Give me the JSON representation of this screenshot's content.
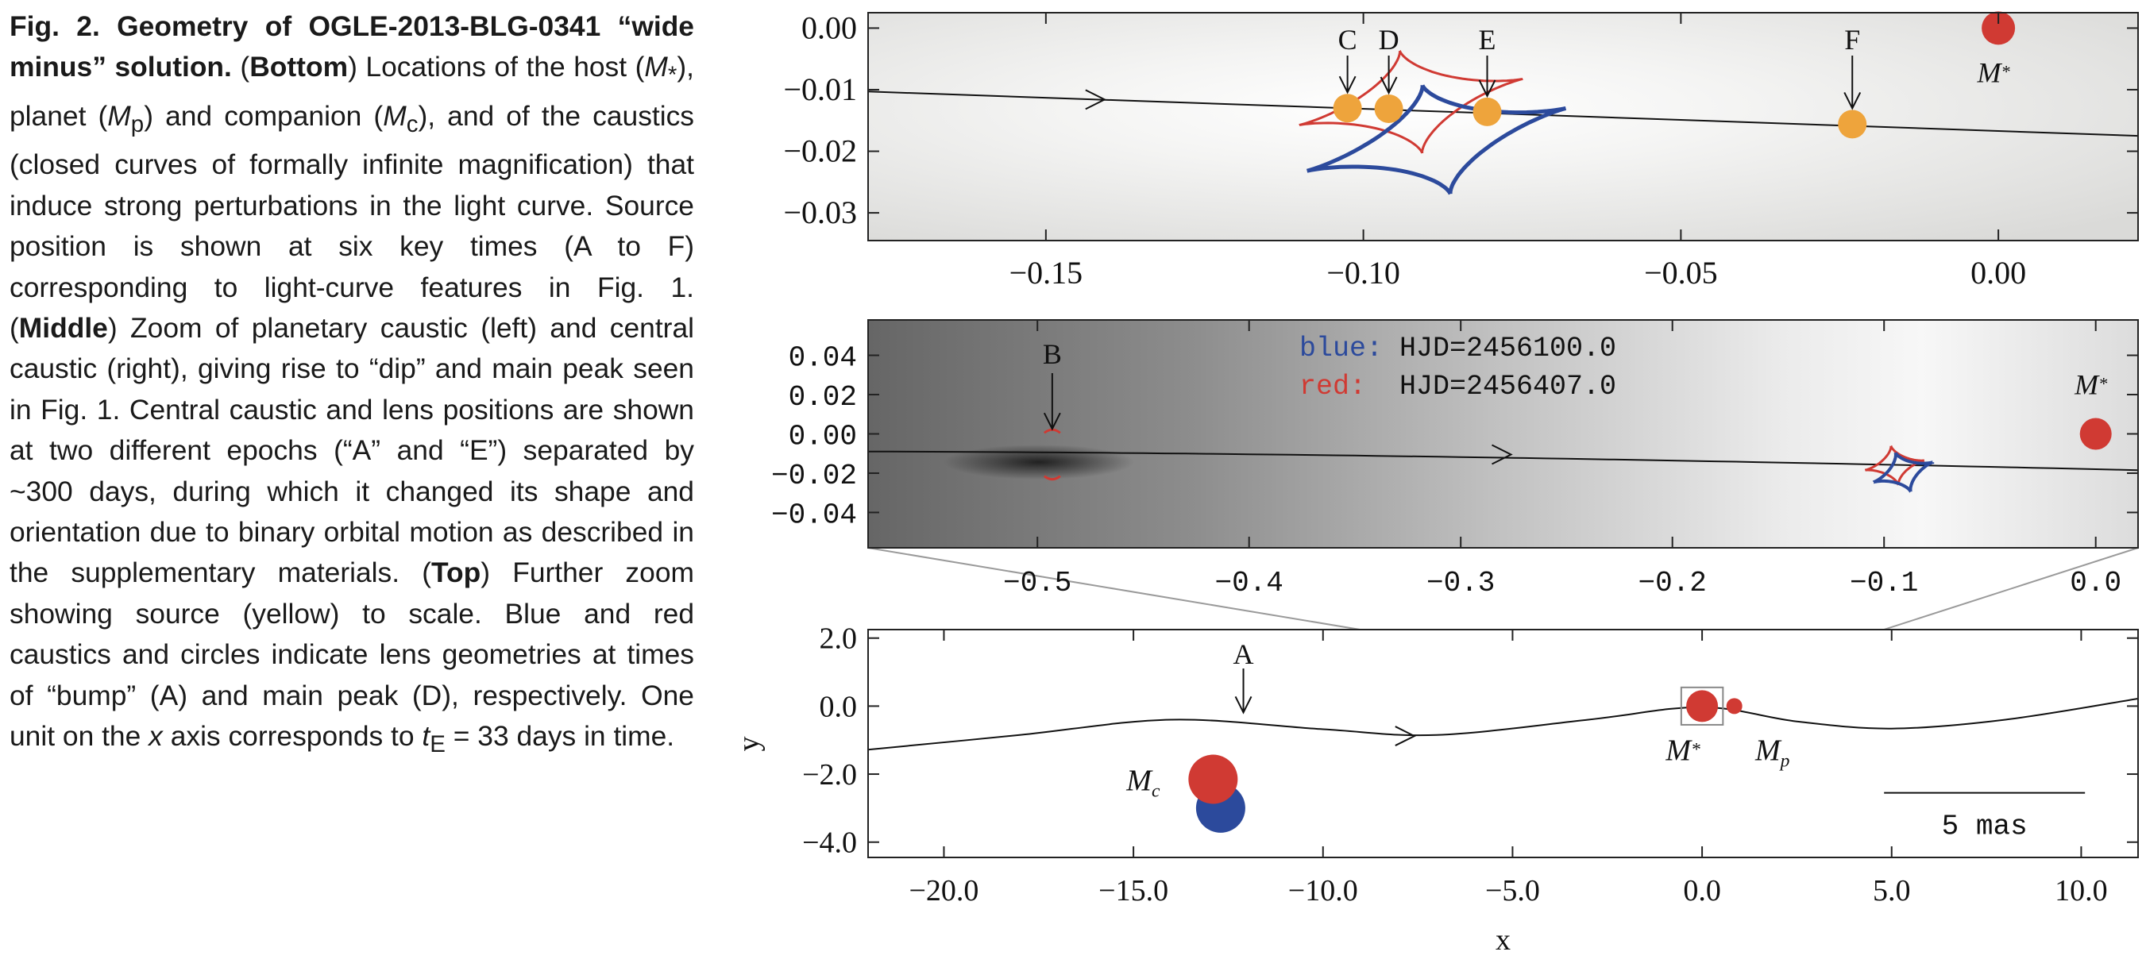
{
  "caption": {
    "fig_label": "Fig. 2.",
    "title": "Geometry of OGLE-2013-BLG-0341 “wide minus” solution.",
    "seg_bottom_tag": "Bottom",
    "seg_bottom_text_a": "Locations of the host (",
    "sym_mstar": "M",
    "sym_mstar_sub": "*",
    "seg_bottom_text_b": "), planet (",
    "sym_mp": "M",
    "sym_mp_sub": "p",
    "seg_bottom_text_c": ") and companion (",
    "sym_mc": "M",
    "sym_mc_sub": "c",
    "seg_bottom_text_d": "), and of the caustics (closed curves of formally infinite magnification) that induce strong perturbations in the light curve. Source position is shown at six key times (A to F) corresponding to light-curve features in Fig. 1.",
    "seg_middle_tag": "Middle",
    "seg_middle_text": "Zoom of planetary caustic (left) and central caustic (right), giving rise to “dip” and main peak seen in Fig. 1. Central caustic and lens positions are shown at two different epochs (“A” and “E”) separated by ~300 days, during which it changed its shape and orientation due to binary orbital motion as described in the supplementary materials.",
    "seg_top_tag": "Top",
    "seg_top_text_a": "Further zoom showing source (yellow) to scale. Blue and red caustics and circles indicate lens geometries at times of “bump” (A) and main peak (D), respectively. One unit on the",
    "sym_x": "x",
    "seg_top_text_b": "axis corresponds to",
    "sym_te": "t",
    "sym_te_sub": "E",
    "seg_top_text_c": "= 33 days in time."
  },
  "colors": {
    "blue": "#2c4a9c",
    "red": "#d03a33",
    "orange": "#eea43c",
    "axis": "#222222",
    "connector": "#9a9a9a"
  },
  "chart_data": [
    {
      "id": "top",
      "type": "scatter",
      "xlim": [
        -0.178,
        0.022
      ],
      "ylim": [
        -0.0345,
        0.0025
      ],
      "xticks": [
        -0.15,
        -0.1,
        -0.05,
        0.0
      ],
      "xtick_labels": [
        "−0.15",
        "−0.10",
        "−0.05",
        "0.00"
      ],
      "yticks": [
        0.0,
        -0.01,
        -0.02,
        -0.03
      ],
      "ytick_labels": [
        "0.00",
        "−0.01",
        "−0.02",
        "−0.03"
      ],
      "trajectory": [
        [
          -0.178,
          -0.0103
        ],
        [
          0.022,
          -0.0175
        ]
      ],
      "trajectory_arrow": {
        "x": -0.142,
        "y": -0.0116
      },
      "source_points": [
        {
          "label": "C",
          "x": -0.1025,
          "y": -0.013
        },
        {
          "label": "D",
          "x": -0.096,
          "y": -0.0131
        },
        {
          "label": "E",
          "x": -0.0805,
          "y": -0.0136
        },
        {
          "label": "F",
          "x": -0.023,
          "y": -0.0156
        }
      ],
      "host": {
        "label": "M",
        "label_sub": "*",
        "x": 0.0,
        "y": 0.0
      },
      "caustic_blue": {
        "center": [
          -0.0885,
          -0.0181
        ],
        "half_width": 0.021,
        "half_height": 0.0091,
        "rotation_deg": 14
      },
      "caustic_red": {
        "center": [
          -0.0925,
          -0.012
        ],
        "half_width": 0.018,
        "half_height": 0.0085,
        "rotation_deg": 12
      },
      "background": "magnification map"
    },
    {
      "id": "middle",
      "type": "scatter",
      "xlim": [
        -0.58,
        0.02
      ],
      "ylim": [
        -0.058,
        0.058
      ],
      "xticks": [
        -0.5,
        -0.4,
        -0.3,
        -0.2,
        -0.1,
        0.0
      ],
      "xtick_labels": [
        "−0.5",
        "−0.4",
        "−0.3",
        "−0.2",
        "−0.1",
        "0.0"
      ],
      "yticks": [
        0.04,
        0.02,
        0.0,
        -0.02,
        -0.04
      ],
      "ytick_labels": [
        "0.04",
        "0.02",
        "0.00",
        "−0.02",
        "−0.04"
      ],
      "trajectory": [
        [
          -0.58,
          -0.009
        ],
        [
          0.02,
          -0.0185
        ]
      ],
      "trajectory_arrow": {
        "x": -0.28,
        "y": -0.0105
      },
      "labeled_point": {
        "label": "B",
        "x": -0.493,
        "y": -0.0015
      },
      "planetary_caustic": {
        "x": -0.493,
        "y_top": 0.0005,
        "y_bottom": -0.0215
      },
      "host": {
        "label": "M",
        "label_sub": "*",
        "x": 0.0,
        "y": 0.0
      },
      "caustic_blue": {
        "center": [
          -0.091,
          -0.0195
        ],
        "half_width": 0.0148,
        "half_height": 0.0105,
        "rotation_deg": 20
      },
      "caustic_red": {
        "center": [
          -0.095,
          -0.016
        ],
        "half_width": 0.0142,
        "half_height": 0.01,
        "rotation_deg": 10
      },
      "legend": [
        {
          "name": "blue:",
          "text": "HJD=2456100.0"
        },
        {
          "name": "red:",
          "text": "HJD=2456407.0"
        }
      ],
      "background": "magnification map"
    },
    {
      "id": "bottom",
      "type": "scatter",
      "xlim": [
        -22.0,
        11.5
      ],
      "ylim": [
        -4.45,
        2.25
      ],
      "xticks": [
        -20.0,
        -15.0,
        -10.0,
        -5.0,
        0.0,
        5.0,
        10.0
      ],
      "xtick_labels": [
        "−20.0",
        "−15.0",
        "−10.0",
        "−5.0",
        "0.0",
        "5.0",
        "10.0"
      ],
      "yticks": [
        2.0,
        0.0,
        -2.0,
        -4.0
      ],
      "ytick_labels": [
        "2.0",
        "0.0",
        "−2.0",
        "−4.0"
      ],
      "xlabel": "x",
      "ylabel": "y",
      "trajectory": [
        [
          -22.0,
          -1.28
        ],
        [
          -18.0,
          -0.85
        ],
        [
          -14.0,
          -0.4
        ],
        [
          -10.0,
          -0.68
        ],
        [
          -7.0,
          -0.85
        ],
        [
          -3.0,
          -0.4
        ],
        [
          0.0,
          -0.03
        ],
        [
          2.5,
          -0.45
        ],
        [
          5.0,
          -0.66
        ],
        [
          8.0,
          -0.4
        ],
        [
          11.5,
          0.22
        ]
      ],
      "trajectory_arrow": {
        "x": -7.8,
        "y": -0.88
      },
      "labeled_point": {
        "label": "A",
        "x": -12.1,
        "y": -0.42
      },
      "host": {
        "label": "M",
        "label_sub": "*",
        "x": 0.0,
        "y": 0.0
      },
      "planet": {
        "label": "M",
        "label_sub": "p",
        "x": 0.85,
        "y": 0.0
      },
      "companion": {
        "label": "M",
        "label_sub": "c",
        "red": {
          "x": -12.9,
          "y": -2.15
        },
        "blue": {
          "x": -12.7,
          "y": -3.0
        }
      },
      "zoom_box": {
        "x": [
          -0.55,
          0.55
        ],
        "y": [
          -0.55,
          0.55
        ]
      },
      "scale_bar": {
        "text": "5 mas",
        "x": [
          4.8,
          10.1
        ],
        "y": -2.55
      }
    }
  ]
}
